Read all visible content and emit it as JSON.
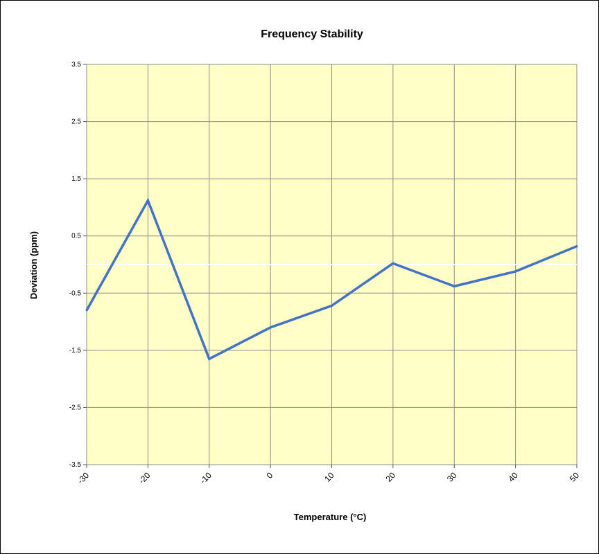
{
  "chart_data": {
    "type": "line",
    "title": "Frequency Stability",
    "xlabel": "Temperature (°C)",
    "ylabel": "Deviation (ppm)",
    "x": [
      -30,
      -20,
      -10,
      0,
      10,
      20,
      30,
      40,
      50
    ],
    "x_tick_labels": [
      "-30",
      "-20",
      "-10",
      "0",
      "10",
      "20",
      "30",
      "40",
      "50"
    ],
    "y_ticks": [
      3.5,
      2.5,
      1.5,
      0.5,
      -0.5,
      -1.5,
      -2.5,
      -3.5
    ],
    "y_tick_labels": [
      "3.5",
      "2.5",
      "1.5",
      "0.5",
      "-0.5",
      "-1.5",
      "-2.5",
      "-3.5"
    ],
    "ylim": [
      -3.5,
      3.5
    ],
    "xlim": [
      -30,
      50
    ],
    "grid": true,
    "series": [
      {
        "values": [
          -0.8,
          1.12,
          -1.65,
          -1.1,
          -0.72,
          0.02,
          -0.38,
          -0.12,
          0.32
        ],
        "color": "#4472C4"
      }
    ],
    "colors": {
      "plot_background": "#FFFFC8",
      "grid": "#8C8C8C",
      "zero_line": "#FFFFFF"
    }
  }
}
